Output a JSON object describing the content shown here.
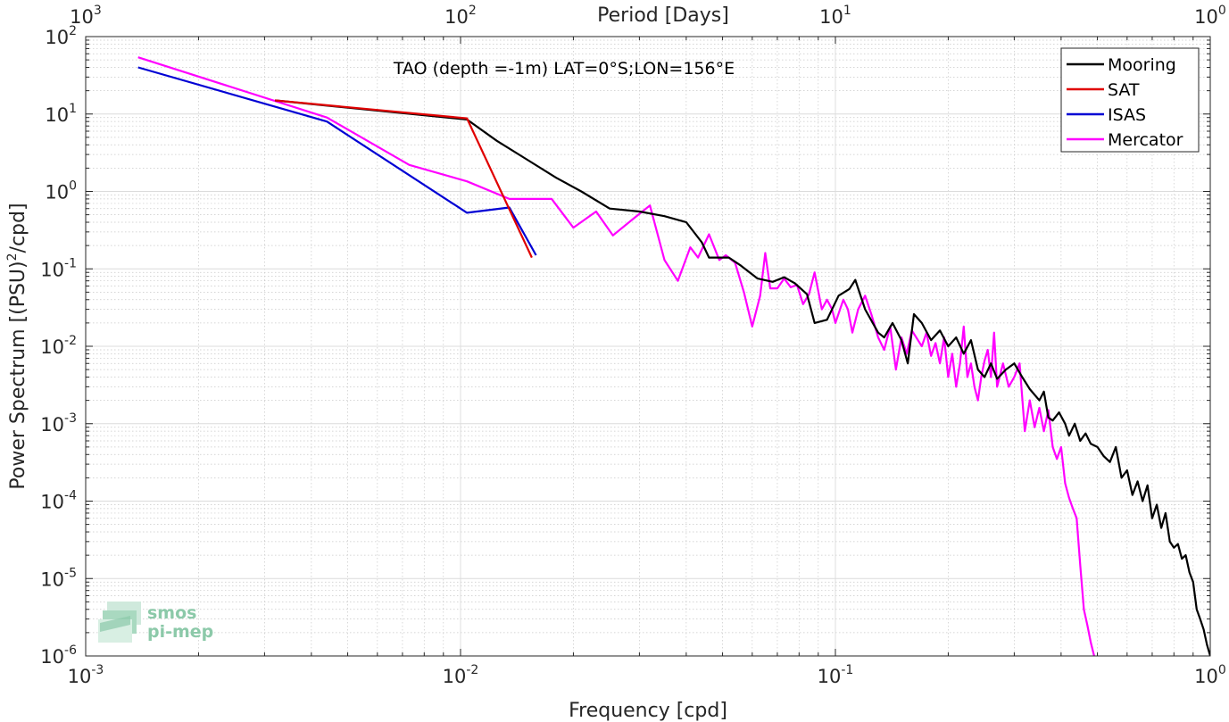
{
  "chart_data": {
    "type": "line",
    "annotation": "TAO (depth =-1m) LAT=0°S;LON=156°E",
    "xlabel": "Frequency [cpd]",
    "x2label": "Period [Days]",
    "ylabel_main": "Power Spectrum [(PSU)",
    "ylabel_sup": "2",
    "ylabel_tail": "/cpd]",
    "x_scale": "log",
    "y_scale": "log",
    "xlim": [
      0.001,
      1
    ],
    "ylim": [
      1e-06,
      100
    ],
    "grid": true,
    "legend_position": "top-right",
    "x_ticks": [
      {
        "value": 0.001,
        "base": "10",
        "exp": "-3"
      },
      {
        "value": 0.01,
        "base": "10",
        "exp": "-2"
      },
      {
        "value": 0.1,
        "base": "10",
        "exp": "-1"
      },
      {
        "value": 1,
        "base": "10",
        "exp": "0"
      }
    ],
    "period_ticks": [
      {
        "value": 1000,
        "base": "10",
        "exp": "3"
      },
      {
        "value": 100,
        "base": "10",
        "exp": "2"
      },
      {
        "value": 10,
        "base": "10",
        "exp": "1"
      },
      {
        "value": 1,
        "base": "10",
        "exp": "0"
      }
    ],
    "y_ticks": [
      {
        "value": 100,
        "base": "10",
        "exp": "2"
      },
      {
        "value": 10,
        "base": "10",
        "exp": "1"
      },
      {
        "value": 1,
        "base": "10",
        "exp": "0"
      },
      {
        "value": 0.1,
        "base": "10",
        "exp": "-1"
      },
      {
        "value": 0.01,
        "base": "10",
        "exp": "-2"
      },
      {
        "value": 0.001,
        "base": "10",
        "exp": "-3"
      },
      {
        "value": 0.0001,
        "base": "10",
        "exp": "-4"
      },
      {
        "value": 1e-05,
        "base": "10",
        "exp": "-5"
      },
      {
        "value": 1e-06,
        "base": "10",
        "exp": "-6"
      }
    ],
    "series": [
      {
        "name": "Mooring",
        "color": "#000000",
        "points": [
          [
            0.0032,
            15
          ],
          [
            0.0104,
            8.5
          ],
          [
            0.0125,
            4.5
          ],
          [
            0.015,
            2.6
          ],
          [
            0.018,
            1.5
          ],
          [
            0.021,
            1.0
          ],
          [
            0.025,
            0.6
          ],
          [
            0.03,
            0.55
          ],
          [
            0.035,
            0.48
          ],
          [
            0.04,
            0.4
          ],
          [
            0.044,
            0.22
          ],
          [
            0.046,
            0.14
          ],
          [
            0.052,
            0.14
          ],
          [
            0.056,
            0.11
          ],
          [
            0.062,
            0.075
          ],
          [
            0.068,
            0.068
          ],
          [
            0.073,
            0.078
          ],
          [
            0.078,
            0.065
          ],
          [
            0.084,
            0.047
          ],
          [
            0.088,
            0.02
          ],
          [
            0.095,
            0.022
          ],
          [
            0.102,
            0.045
          ],
          [
            0.109,
            0.055
          ],
          [
            0.113,
            0.072
          ],
          [
            0.12,
            0.03
          ],
          [
            0.13,
            0.015
          ],
          [
            0.135,
            0.013
          ],
          [
            0.142,
            0.02
          ],
          [
            0.15,
            0.012
          ],
          [
            0.156,
            0.006
          ],
          [
            0.162,
            0.026
          ],
          [
            0.17,
            0.02
          ],
          [
            0.18,
            0.012
          ],
          [
            0.19,
            0.016
          ],
          [
            0.2,
            0.01
          ],
          [
            0.21,
            0.013
          ],
          [
            0.22,
            0.008
          ],
          [
            0.23,
            0.012
          ],
          [
            0.24,
            0.005
          ],
          [
            0.25,
            0.004
          ],
          [
            0.26,
            0.006
          ],
          [
            0.27,
            0.0038
          ],
          [
            0.285,
            0.005
          ],
          [
            0.3,
            0.006
          ],
          [
            0.315,
            0.004
          ],
          [
            0.33,
            0.0028
          ],
          [
            0.35,
            0.002
          ],
          [
            0.36,
            0.0026
          ],
          [
            0.37,
            0.0012
          ],
          [
            0.38,
            0.0011
          ],
          [
            0.395,
            0.0014
          ],
          [
            0.41,
            0.001
          ],
          [
            0.42,
            0.0007
          ],
          [
            0.435,
            0.001
          ],
          [
            0.45,
            0.0006
          ],
          [
            0.465,
            0.00075
          ],
          [
            0.48,
            0.00055
          ],
          [
            0.5,
            0.0005
          ],
          [
            0.52,
            0.00038
          ],
          [
            0.54,
            0.00032
          ],
          [
            0.56,
            0.0005
          ],
          [
            0.58,
            0.0002
          ],
          [
            0.6,
            0.00025
          ],
          [
            0.62,
            0.00012
          ],
          [
            0.64,
            0.00018
          ],
          [
            0.66,
            0.0001
          ],
          [
            0.68,
            0.00016
          ],
          [
            0.7,
            6e-05
          ],
          [
            0.72,
            9e-05
          ],
          [
            0.74,
            4.5e-05
          ],
          [
            0.76,
            7e-05
          ],
          [
            0.78,
            3e-05
          ],
          [
            0.8,
            2.5e-05
          ],
          [
            0.82,
            2.8e-05
          ],
          [
            0.84,
            1.8e-05
          ],
          [
            0.86,
            2e-05
          ],
          [
            0.88,
            1.2e-05
          ],
          [
            0.9,
            9e-06
          ],
          [
            0.92,
            4e-06
          ],
          [
            0.94,
            3e-06
          ],
          [
            0.96,
            2.2e-06
          ],
          [
            0.98,
            1.4e-06
          ],
          [
            1.0,
            1e-06
          ]
        ]
      },
      {
        "name": "SAT",
        "color": "#e00000",
        "points": [
          [
            0.0032,
            15
          ],
          [
            0.0104,
            8.8
          ],
          [
            0.0155,
            0.14
          ]
        ]
      },
      {
        "name": "ISAS",
        "color": "#0000d4",
        "points": [
          [
            0.00138,
            40
          ],
          [
            0.0044,
            8
          ],
          [
            0.0104,
            0.53
          ],
          [
            0.0135,
            0.62
          ],
          [
            0.0159,
            0.15
          ]
        ]
      },
      {
        "name": "Mercator",
        "color": "#ff00ff",
        "points": [
          [
            0.00138,
            54
          ],
          [
            0.0044,
            9
          ],
          [
            0.0073,
            2.2
          ],
          [
            0.0104,
            1.35
          ],
          [
            0.0135,
            0.8
          ],
          [
            0.0175,
            0.8
          ],
          [
            0.02,
            0.34
          ],
          [
            0.023,
            0.55
          ],
          [
            0.0255,
            0.27
          ],
          [
            0.029,
            0.45
          ],
          [
            0.032,
            0.66
          ],
          [
            0.035,
            0.13
          ],
          [
            0.038,
            0.07
          ],
          [
            0.041,
            0.19
          ],
          [
            0.043,
            0.14
          ],
          [
            0.046,
            0.28
          ],
          [
            0.049,
            0.13
          ],
          [
            0.051,
            0.15
          ],
          [
            0.054,
            0.12
          ],
          [
            0.057,
            0.05
          ],
          [
            0.06,
            0.018
          ],
          [
            0.063,
            0.045
          ],
          [
            0.065,
            0.16
          ],
          [
            0.067,
            0.056
          ],
          [
            0.07,
            0.056
          ],
          [
            0.073,
            0.075
          ],
          [
            0.076,
            0.058
          ],
          [
            0.079,
            0.062
          ],
          [
            0.082,
            0.035
          ],
          [
            0.085,
            0.047
          ],
          [
            0.088,
            0.09
          ],
          [
            0.092,
            0.03
          ],
          [
            0.095,
            0.04
          ],
          [
            0.098,
            0.03
          ],
          [
            0.1,
            0.02
          ],
          [
            0.105,
            0.04
          ],
          [
            0.108,
            0.03
          ],
          [
            0.111,
            0.015
          ],
          [
            0.115,
            0.03
          ],
          [
            0.12,
            0.045
          ],
          [
            0.125,
            0.025
          ],
          [
            0.13,
            0.013
          ],
          [
            0.135,
            0.009
          ],
          [
            0.14,
            0.018
          ],
          [
            0.145,
            0.005
          ],
          [
            0.15,
            0.013
          ],
          [
            0.155,
            0.008
          ],
          [
            0.16,
            0.016
          ],
          [
            0.17,
            0.01
          ],
          [
            0.175,
            0.015
          ],
          [
            0.18,
            0.0075
          ],
          [
            0.185,
            0.011
          ],
          [
            0.19,
            0.006
          ],
          [
            0.195,
            0.013
          ],
          [
            0.2,
            0.004
          ],
          [
            0.205,
            0.008
          ],
          [
            0.21,
            0.003
          ],
          [
            0.215,
            0.006
          ],
          [
            0.22,
            0.018
          ],
          [
            0.225,
            0.004
          ],
          [
            0.23,
            0.006
          ],
          [
            0.235,
            0.003
          ],
          [
            0.24,
            0.002
          ],
          [
            0.245,
            0.004
          ],
          [
            0.25,
            0.0065
          ],
          [
            0.255,
            0.009
          ],
          [
            0.26,
            0.004
          ],
          [
            0.265,
            0.015
          ],
          [
            0.27,
            0.003
          ],
          [
            0.28,
            0.006
          ],
          [
            0.29,
            0.003
          ],
          [
            0.3,
            0.004
          ],
          [
            0.31,
            0.006
          ],
          [
            0.32,
            0.0008
          ],
          [
            0.33,
            0.002
          ],
          [
            0.34,
            0.0009
          ],
          [
            0.35,
            0.0016
          ],
          [
            0.36,
            0.0008
          ],
          [
            0.37,
            0.0015
          ],
          [
            0.38,
            0.0005
          ],
          [
            0.39,
            0.00035
          ],
          [
            0.4,
            0.0005
          ],
          [
            0.41,
            0.00017
          ],
          [
            0.42,
            0.00011
          ],
          [
            0.43,
            8e-05
          ],
          [
            0.44,
            6e-05
          ],
          [
            0.45,
            1.5e-05
          ],
          [
            0.46,
            4e-06
          ],
          [
            0.47,
            2.5e-06
          ],
          [
            0.48,
            1.5e-06
          ],
          [
            0.49,
            1e-06
          ]
        ]
      }
    ]
  },
  "logo": {
    "line1": "smos",
    "line2": "pi-mep"
  }
}
